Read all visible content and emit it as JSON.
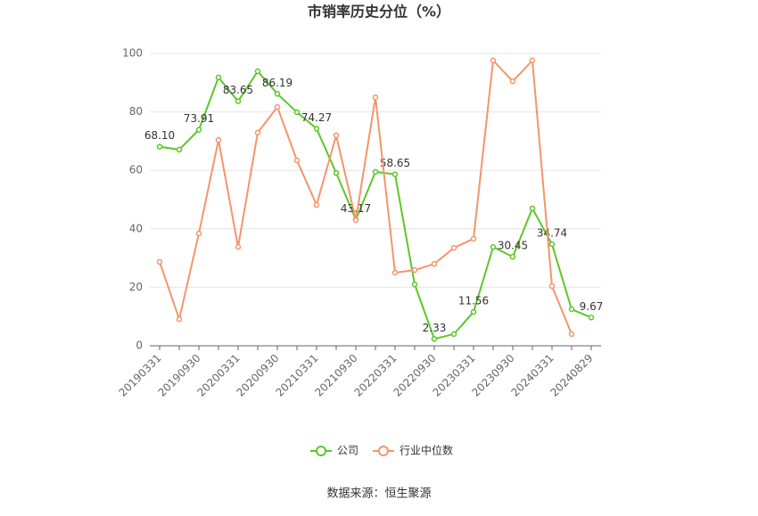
{
  "chart_data": {
    "type": "line",
    "title": "市销率历史分位（%）",
    "categories": [
      "20190331",
      null,
      "20190930",
      null,
      "20200331",
      null,
      "20200930",
      null,
      "20210331",
      null,
      "20210930",
      null,
      "20220331",
      null,
      "20220930",
      null,
      "20230331",
      null,
      "20230930",
      null,
      "20240331",
      null,
      "20240829"
    ],
    "series": [
      {
        "name": "公司",
        "color": "#5cc728",
        "values": [
          68.1,
          67.1,
          73.91,
          91.8,
          83.65,
          93.9,
          86.19,
          79.9,
          74.27,
          59.1,
          43.17,
          59.5,
          58.65,
          21,
          2.33,
          4,
          11.56,
          33.8,
          30.45,
          47,
          34.74,
          12.5,
          9.67
        ],
        "value_labels": [
          "68.10",
          null,
          "73.91",
          null,
          "83.65",
          null,
          "86.19",
          null,
          "74.27",
          null,
          "43.17",
          null,
          "58.65",
          null,
          "2.33",
          null,
          "11.56",
          null,
          "30.45",
          null,
          "34.74",
          null,
          "9.67"
        ]
      },
      {
        "name": "行业中位数",
        "color": "#f4956a",
        "values": [
          28.7,
          9.1,
          38.4,
          70.4,
          33.8,
          72.9,
          81.7,
          63.4,
          48.2,
          72,
          43,
          85,
          25,
          25.9,
          28,
          33.5,
          36.6,
          97.6,
          90.5,
          97.6,
          20.4,
          4,
          null
        ]
      }
    ],
    "ylim": [
      0,
      100
    ],
    "yticks": [
      0,
      20,
      40,
      60,
      80,
      100
    ],
    "grid": true,
    "source": "数据来源：恒生聚源"
  }
}
